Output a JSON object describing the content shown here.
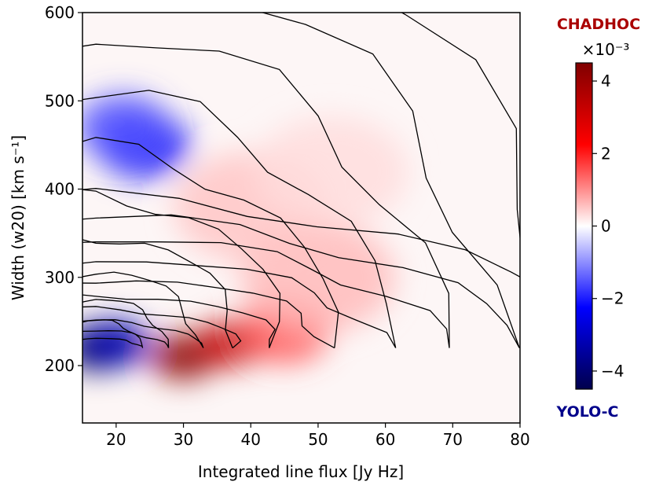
{
  "chart_data": {
    "type": "heatmap",
    "xlabel": "Integrated line flux [Jy Hz]",
    "ylabel": "Width (w20) [km s⁻¹]",
    "xlim": [
      15,
      80
    ],
    "ylim": [
      135,
      600
    ],
    "x_ticks": [
      "20",
      "30",
      "40",
      "50",
      "60",
      "70",
      "80"
    ],
    "y_ticks": [
      "200",
      "300",
      "400",
      "500",
      "600"
    ],
    "colorbar": {
      "range": [
        -4.5,
        4.5
      ],
      "ticks": [
        "−4",
        "−2",
        "0",
        "2",
        "4"
      ],
      "exponent_label": "×10⁻³",
      "top_label": "CHADHOC",
      "bottom_label": "YOLO-C",
      "top_label_color": "#aa0000",
      "bottom_label_color": "#00008b",
      "colormap": "seismic"
    },
    "difference_features": [
      {
        "x": 17,
        "y": 220,
        "value": -4.5
      },
      {
        "x": 20,
        "y": 225,
        "value": -3.2
      },
      {
        "x": 24,
        "y": 450,
        "value": -2.3
      },
      {
        "x": 21,
        "y": 470,
        "value": -1.5
      },
      {
        "x": 30,
        "y": 210,
        "value": 4.3
      },
      {
        "x": 37,
        "y": 225,
        "value": 3.3
      },
      {
        "x": 45,
        "y": 240,
        "value": 1.5
      },
      {
        "x": 50,
        "y": 300,
        "value": 0.6
      },
      {
        "x": 40,
        "y": 380,
        "value": 0.5
      },
      {
        "x": 52,
        "y": 420,
        "value": 0.3
      }
    ],
    "contour_lines": 10,
    "grid": false
  }
}
